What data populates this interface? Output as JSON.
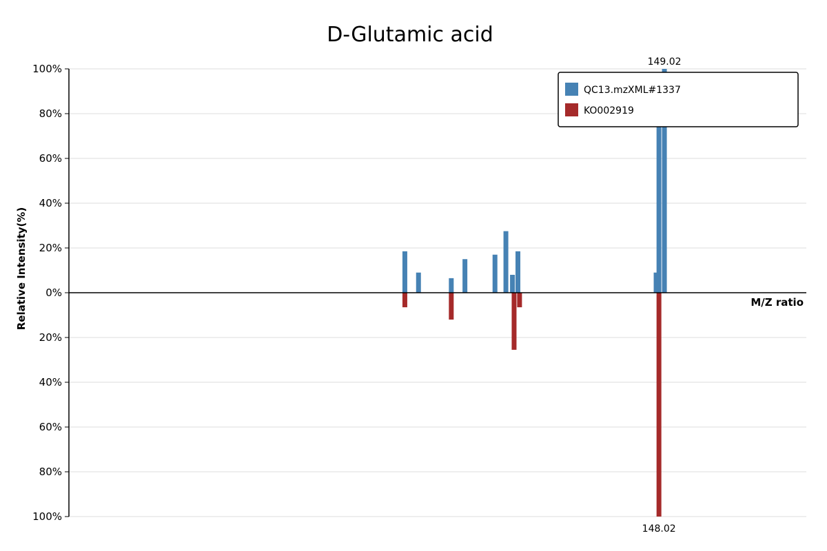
{
  "chart_data": {
    "type": "bar",
    "title": "D-Glutamic acid",
    "xlabel": "M/Z ratio",
    "ylabel": "Relative Intensity(%)",
    "ylim": [
      -100,
      100
    ],
    "y_ticks": [
      "100%",
      "80%",
      "60%",
      "40%",
      "20%",
      "0%",
      "20%",
      "40%",
      "60%",
      "80%",
      "100%"
    ],
    "legend_position": "top-right",
    "grid": true,
    "series": [
      {
        "name": "QC13.mzXML#1337",
        "color": "#4682b4",
        "points": [
          {
            "mz": 101.5,
            "intensity": 18.5
          },
          {
            "mz": 104.0,
            "intensity": 9.0
          },
          {
            "mz": 110.0,
            "intensity": 6.5
          },
          {
            "mz": 112.5,
            "intensity": 15.0
          },
          {
            "mz": 118.0,
            "intensity": 17.0
          },
          {
            "mz": 120.0,
            "intensity": 27.5
          },
          {
            "mz": 121.2,
            "intensity": 8.0
          },
          {
            "mz": 122.2,
            "intensity": 18.5
          },
          {
            "mz": 147.5,
            "intensity": 9.0
          },
          {
            "mz": 148.02,
            "intensity": 81.0
          },
          {
            "mz": 149.02,
            "intensity": 100.0
          }
        ]
      },
      {
        "name": "KO002919",
        "color": "#a52a2a",
        "points": [
          {
            "mz": 101.5,
            "intensity": 6.5
          },
          {
            "mz": 110.0,
            "intensity": 12.0
          },
          {
            "mz": 121.5,
            "intensity": 25.5
          },
          {
            "mz": 122.5,
            "intensity": 6.5
          },
          {
            "mz": 148.02,
            "intensity": 100.0
          }
        ]
      }
    ],
    "peak_labels": [
      {
        "series": 0,
        "mz": 149.02,
        "text": "149.02"
      },
      {
        "series": 0,
        "mz": 148.02,
        "text": "148.02"
      },
      {
        "series": 1,
        "mz": 148.02,
        "text": "148.02"
      }
    ]
  }
}
